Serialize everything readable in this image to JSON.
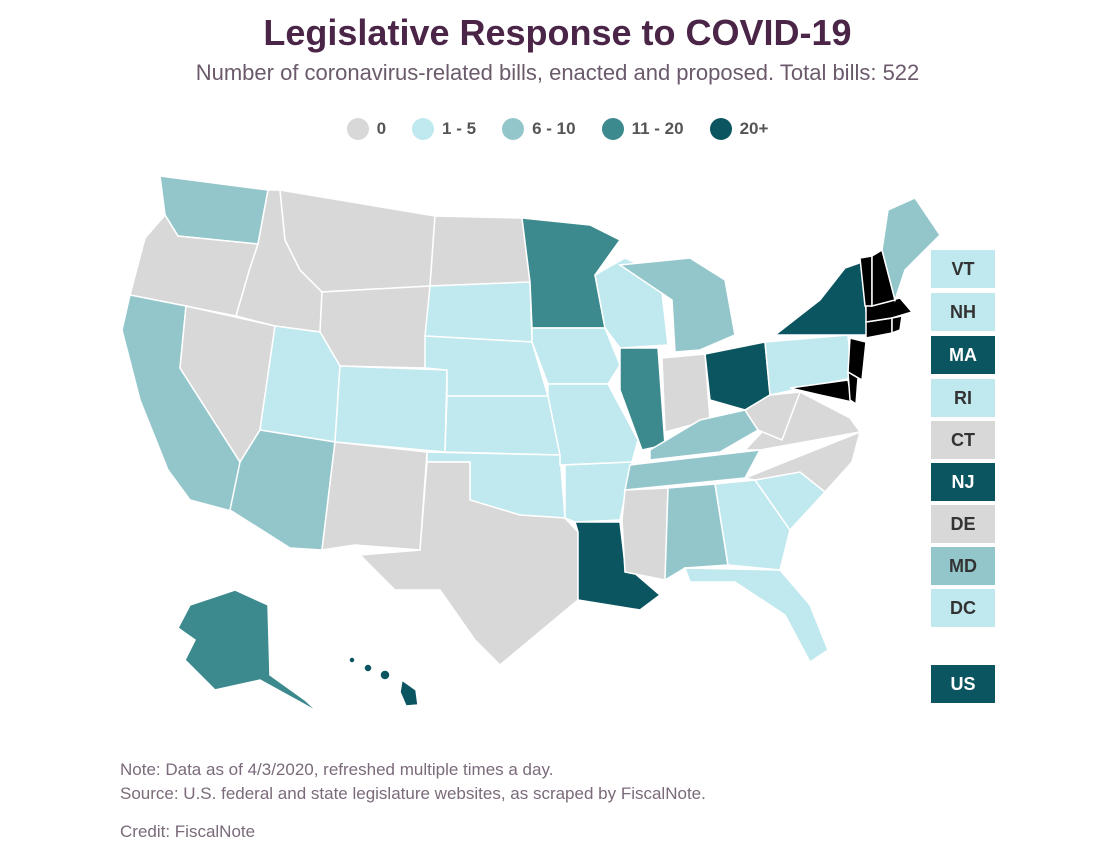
{
  "title": "Legislative Response to COVID-19",
  "subtitle": "Number of coronavirus-related bills, enacted and proposed. Total bills: 522",
  "legend": [
    {
      "label": "0",
      "color": "#d8d8d8"
    },
    {
      "label": "1 - 5",
      "color": "#bfe8ef"
    },
    {
      "label": "6 - 10",
      "color": "#93c6cb"
    },
    {
      "label": "11 - 20",
      "color": "#3c8a8e"
    },
    {
      "label": "20+",
      "color": "#0b5560"
    }
  ],
  "small_states": [
    {
      "code": "VT",
      "bucket": 1
    },
    {
      "code": "NH",
      "bucket": 1
    },
    {
      "code": "MA",
      "bucket": 4
    },
    {
      "code": "RI",
      "bucket": 1
    },
    {
      "code": "CT",
      "bucket": 0
    },
    {
      "code": "NJ",
      "bucket": 4
    },
    {
      "code": "DE",
      "bucket": 0
    },
    {
      "code": "MD",
      "bucket": 2
    },
    {
      "code": "DC",
      "bucket": 1
    }
  ],
  "federal": {
    "code": "US",
    "bucket": 4
  },
  "states": {
    "WA": 2,
    "OR": 0,
    "CA": 2,
    "ID": 0,
    "NV": 0,
    "MT": 0,
    "WY": 0,
    "UT": 1,
    "AZ": 2,
    "CO": 1,
    "NM": 0,
    "ND": 0,
    "SD": 1,
    "NE": 1,
    "KS": 1,
    "OK": 1,
    "TX": 0,
    "MN": 3,
    "IA": 1,
    "MO": 1,
    "AR": 1,
    "LA": 4,
    "WI": 1,
    "IL": 3,
    "MI": 2,
    "IN": 0,
    "OH": 4,
    "KY": 2,
    "TN": 2,
    "MS": 0,
    "AL": 2,
    "GA": 1,
    "FL": 1,
    "SC": 1,
    "NC": 0,
    "VA": 0,
    "WV": 0,
    "PA": 1,
    "NY": 4,
    "ME": 2,
    "AK": 3,
    "HI": 4
  },
  "note": "Note: Data as of 4/3/2020, refreshed multiple times a day.",
  "source": "Source: U.S. federal and state legislature websites, as scraped by FiscalNote.",
  "credit": "Credit: FiscalNote"
}
